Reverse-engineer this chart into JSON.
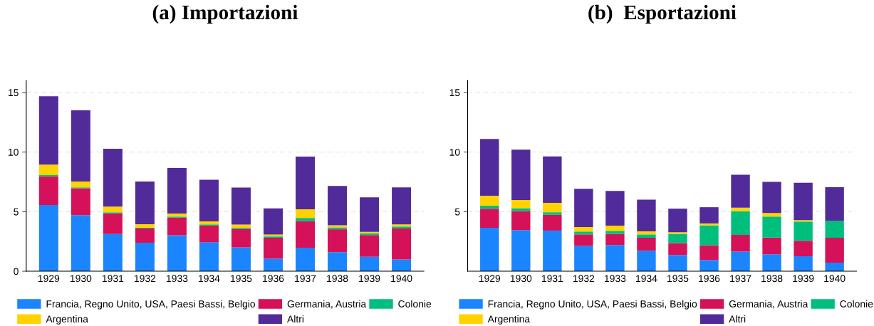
{
  "chart_data": [
    {
      "type": "bar",
      "title": "(a) Importazioni",
      "stacked": true,
      "categories": [
        "1929",
        "1930",
        "1931",
        "1932",
        "1933",
        "1934",
        "1935",
        "1936",
        "1937",
        "1938",
        "1939",
        "1940"
      ],
      "ylim": [
        0,
        16
      ],
      "yticks": [
        0,
        5,
        10,
        15
      ],
      "grid": "y",
      "legend": "bottom",
      "series": [
        {
          "name": "Francia, Regno Unito, USA, Paesi Bassi, Belgio",
          "color": "#1a85ff",
          "values": [
            5.55,
            4.7,
            3.12,
            2.39,
            3.02,
            2.43,
            2.0,
            1.05,
            1.98,
            1.6,
            1.21,
            0.99
          ]
        },
        {
          "name": "Germania, Austria",
          "color": "#d41159",
          "values": [
            2.41,
            2.26,
            1.74,
            1.19,
            1.47,
            1.4,
            1.54,
            1.76,
            2.23,
            1.92,
            1.83,
            2.59
          ]
        },
        {
          "name": "Colonie",
          "color": "#00bf7d",
          "values": [
            0.1,
            0.08,
            0.08,
            0.08,
            0.09,
            0.1,
            0.1,
            0.11,
            0.26,
            0.16,
            0.14,
            0.17
          ]
        },
        {
          "name": "Argentina",
          "color": "#ffd200",
          "values": [
            0.89,
            0.49,
            0.49,
            0.29,
            0.26,
            0.26,
            0.27,
            0.16,
            0.73,
            0.17,
            0.12,
            0.18
          ]
        },
        {
          "name": "Altri",
          "color": "#512b9a",
          "values": [
            5.73,
            5.97,
            4.85,
            3.58,
            3.82,
            3.48,
            3.11,
            2.2,
            4.42,
            3.3,
            2.9,
            3.11
          ]
        }
      ]
    },
    {
      "type": "bar",
      "title": "(b)  Esportazioni",
      "stacked": true,
      "categories": [
        "1929",
        "1930",
        "1931",
        "1932",
        "1933",
        "1934",
        "1935",
        "1936",
        "1937",
        "1938",
        "1939",
        "1940"
      ],
      "ylim": [
        0,
        16
      ],
      "yticks": [
        5,
        10,
        15
      ],
      "grid": "y",
      "legend": "bottom",
      "series": [
        {
          "name": "Francia, Regno Unito, USA, Paesi Bassi, Belgio",
          "color": "#1a85ff",
          "values": [
            3.65,
            3.45,
            3.41,
            2.12,
            2.2,
            1.72,
            1.36,
            0.94,
            1.64,
            1.42,
            1.26,
            0.72
          ]
        },
        {
          "name": "Germania, Austria",
          "color": "#d41159",
          "values": [
            1.6,
            1.6,
            1.32,
            0.97,
            0.93,
            1.09,
            1.0,
            1.24,
            1.41,
            1.41,
            1.29,
            2.09
          ]
        },
        {
          "name": "Colonie",
          "color": "#00bf7d",
          "values": [
            0.24,
            0.24,
            0.22,
            0.24,
            0.26,
            0.28,
            0.75,
            1.67,
            1.98,
            1.76,
            1.62,
            1.4
          ]
        },
        {
          "name": "Argentina",
          "color": "#ffd200",
          "values": [
            0.84,
            0.68,
            0.78,
            0.38,
            0.44,
            0.26,
            0.16,
            0.16,
            0.3,
            0.3,
            0.12,
            0.0
          ]
        },
        {
          "name": "Altri",
          "color": "#512b9a",
          "values": [
            4.77,
            4.23,
            3.91,
            3.2,
            2.9,
            2.66,
            1.98,
            1.36,
            2.77,
            2.61,
            3.14,
            2.84
          ]
        }
      ]
    }
  ]
}
